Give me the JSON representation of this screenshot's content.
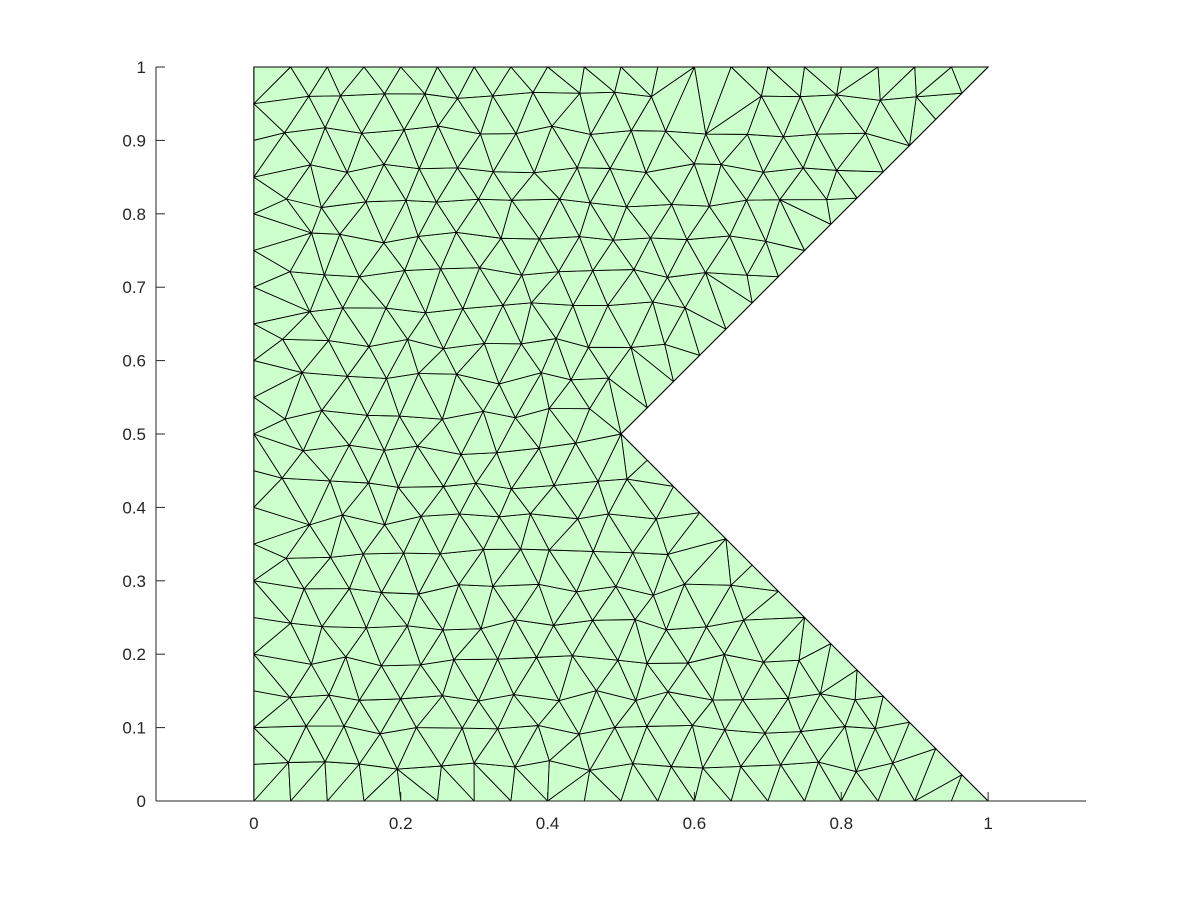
{
  "figure": {
    "type": "triangular-mesh",
    "fill_color": "#ccffcc",
    "edge_color": "#000000",
    "domain_vertices": [
      [
        0,
        0
      ],
      [
        1,
        0
      ],
      [
        0.5,
        0.5
      ],
      [
        1,
        1
      ],
      [
        0,
        1
      ]
    ],
    "x_limits": [
      -0.1333,
      1.1333
    ],
    "y_limits": [
      0,
      1
    ],
    "boundary_spacing": 0.05
  },
  "axes": {
    "x_ticks": [
      {
        "value": 0,
        "label": "0"
      },
      {
        "value": 0.2,
        "label": "0.2"
      },
      {
        "value": 0.4,
        "label": "0.4"
      },
      {
        "value": 0.6,
        "label": "0.6"
      },
      {
        "value": 0.8,
        "label": "0.8"
      },
      {
        "value": 1,
        "label": "1"
      }
    ],
    "y_ticks": [
      {
        "value": 0,
        "label": "0"
      },
      {
        "value": 0.1,
        "label": "0.1"
      },
      {
        "value": 0.2,
        "label": "0.2"
      },
      {
        "value": 0.3,
        "label": "0.3"
      },
      {
        "value": 0.4,
        "label": "0.4"
      },
      {
        "value": 0.5,
        "label": "0.5"
      },
      {
        "value": 0.6,
        "label": "0.6"
      },
      {
        "value": 0.7,
        "label": "0.7"
      },
      {
        "value": 0.8,
        "label": "0.8"
      },
      {
        "value": 0.9,
        "label": "0.9"
      },
      {
        "value": 1,
        "label": "1"
      }
    ]
  }
}
